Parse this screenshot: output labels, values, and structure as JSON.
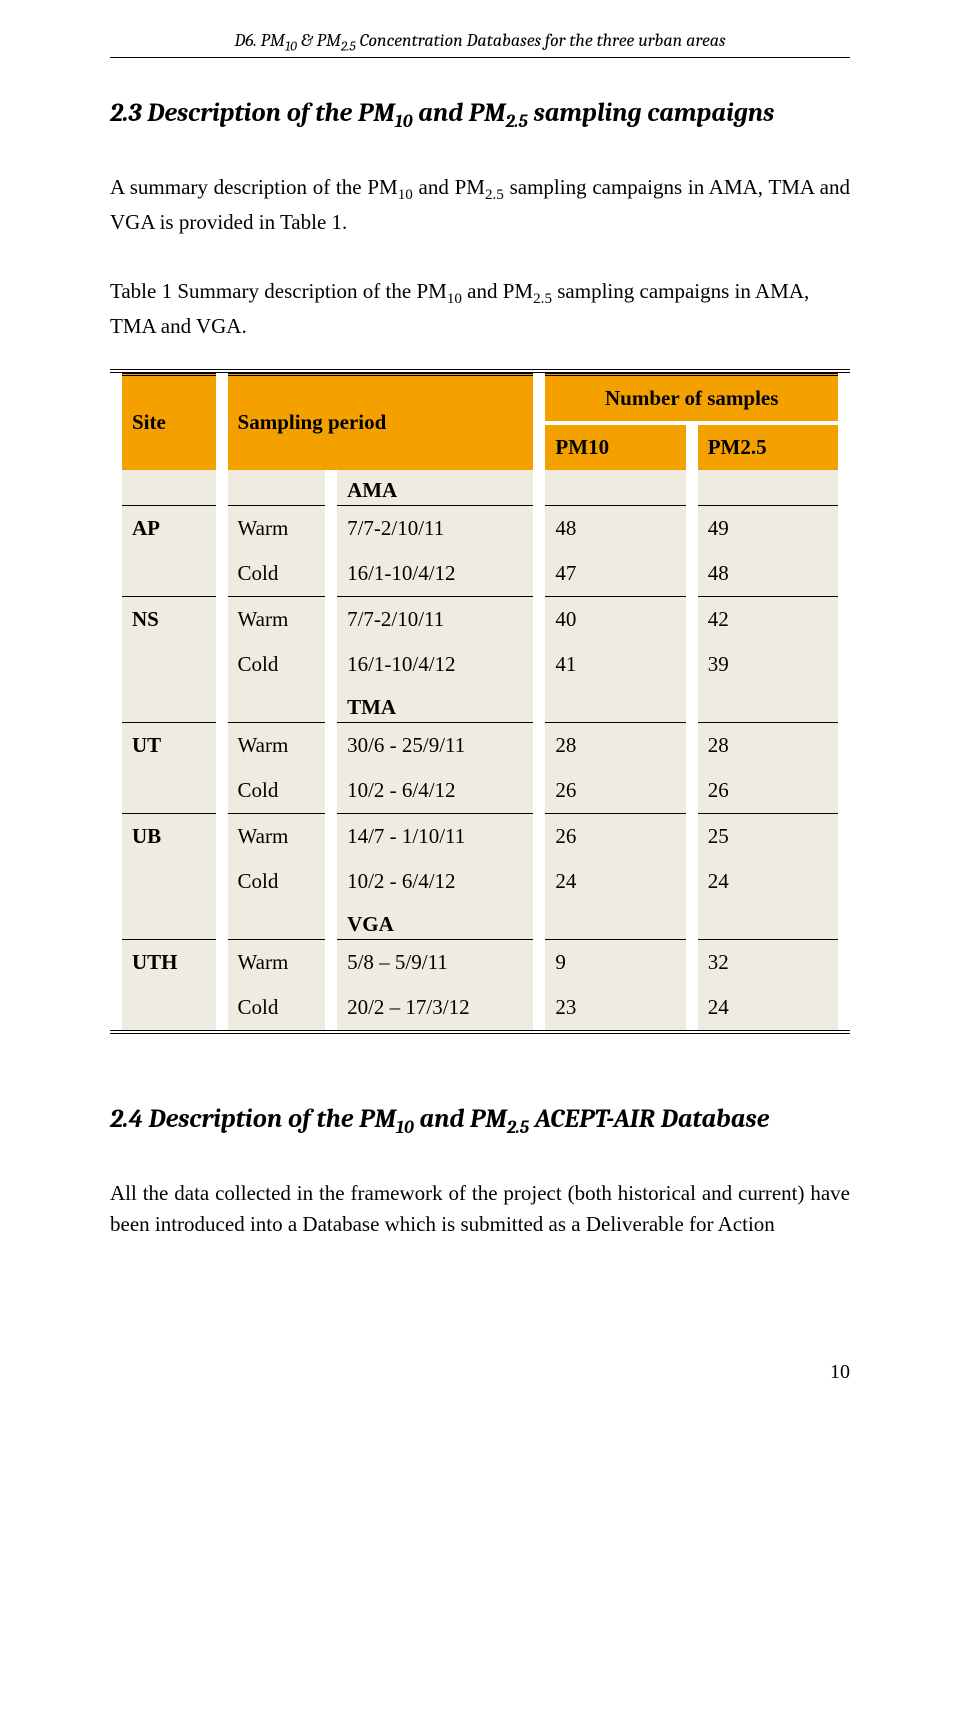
{
  "running_head_html": "D6. PM<span class='sub'>10</span> & PM<span class='sub'>2.5</span> Concentration Databases for the three urban areas",
  "section_23_html": "2.3 Description of the PM<span class='sub'>10</span> and PM<span class='sub'>2.5</span> sampling campaigns",
  "para_1_html": "A summary description of the PM<span class='sub'>10</span> and PM<span class='sub'>2.5</span> sampling campaigns in AMA, TMA and VGA is provided in Table 1.",
  "caption_html": "Table 1 Summary description of the PM<span class='sub'>10</span> and PM<span class='sub'>2.5</span> sampling campaigns in AMA, TMA and VGA.",
  "table": {
    "hdr_site": "Site",
    "hdr_period": "Sampling period",
    "hdr_samples": "Number of samples",
    "sub_pm10_html": "PM<span class='sub'>10</span>",
    "sub_pm25_html": "PM<span class='sub'>2.5</span>",
    "sections": [
      {
        "label": "AMA",
        "rows": [
          {
            "site": "AP",
            "season": "Warm",
            "period": "7/7-2/10/11",
            "pm10": "48",
            "pm25": "49"
          },
          {
            "site": "",
            "season": "Cold",
            "period": "16/1-10/4/12",
            "pm10": "47",
            "pm25": "48"
          },
          {
            "site": "NS",
            "season": "Warm",
            "period": "7/7-2/10/11",
            "pm10": "40",
            "pm25": "42"
          },
          {
            "site": "",
            "season": "Cold",
            "period": "16/1-10/4/12",
            "pm10": "41",
            "pm25": "39"
          }
        ]
      },
      {
        "label": "TMA",
        "rows": [
          {
            "site": "UT",
            "season": "Warm",
            "period": "30/6 - 25/9/11",
            "pm10": "28",
            "pm25": "28"
          },
          {
            "site": "",
            "season": "Cold",
            "period": "10/2 - 6/4/12",
            "pm10": "26",
            "pm25": "26"
          },
          {
            "site": "UB",
            "season": "Warm",
            "period": "14/7 - 1/10/11",
            "pm10": "26",
            "pm25": "25"
          },
          {
            "site": "",
            "season": "Cold",
            "period": "10/2 - 6/4/12",
            "pm10": "24",
            "pm25": "24"
          }
        ]
      },
      {
        "label": "VGA",
        "rows": [
          {
            "site": "UTH",
            "season": "Warm",
            "period": "5/8 – 5/9/11",
            "pm10": "9",
            "pm25": "32"
          },
          {
            "site": "",
            "season": "Cold",
            "period": "20/2 – 17/3/12",
            "pm10": "23",
            "pm25": "24"
          }
        ]
      }
    ],
    "header_bg": "#f4a100",
    "cell_bg": "#eeece1"
  },
  "section_24_html": "2.4 Description of the PM<span class='sub'>10</span> and PM<span class='sub'>2.5</span> ACEPT-AIR Database",
  "para_2": "All the data collected in the framework of the project (both historical and current) have been introduced into a Database which is submitted as a Deliverable for Action",
  "page_number": "10"
}
